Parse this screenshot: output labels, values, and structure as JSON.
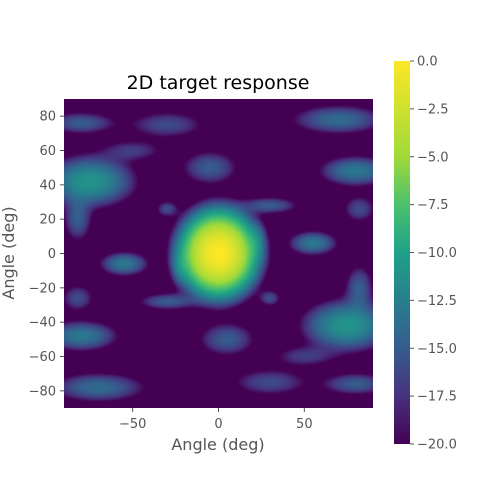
{
  "chart_data": {
    "type": "heatmap",
    "title": "2D target response",
    "xlabel": "Angle (deg)",
    "ylabel": "Angle (deg)",
    "xlim": [
      -90,
      90
    ],
    "ylim": [
      -90,
      90
    ],
    "x_ticks": [
      "−50",
      "0",
      "50"
    ],
    "x_tick_values": [
      -50,
      0,
      50
    ],
    "y_ticks": [
      "80",
      "60",
      "40",
      "20",
      "0",
      "−20",
      "−40",
      "−60",
      "−80"
    ],
    "y_tick_values": [
      80,
      60,
      40,
      20,
      0,
      -20,
      -40,
      -60,
      -80
    ],
    "colorbar": {
      "range": [
        -20,
        0
      ],
      "ticks": [
        "0.0",
        "−2.5",
        "−5.0",
        "−7.5",
        "−10.0",
        "−12.5",
        "−15.0",
        "−17.5",
        "−20.0"
      ],
      "tick_values": [
        0,
        -2.5,
        -5,
        -7.5,
        -10,
        -12.5,
        -15,
        -17.5,
        -20
      ],
      "colormap": "viridis"
    },
    "grid": false,
    "peak": {
      "x": 0,
      "y": 0,
      "value": 0
    },
    "lobes": [
      {
        "x": 0,
        "y": 0,
        "sx": 10,
        "sy": 11,
        "value": 0
      },
      {
        "x": -55,
        "y": -6,
        "sx": 8,
        "sy": 4,
        "value": -13
      },
      {
        "x": 55,
        "y": 6,
        "sx": 8,
        "sy": 4,
        "value": -13
      },
      {
        "x": -22,
        "y": -7,
        "sx": 3,
        "sy": 6,
        "value": -15
      },
      {
        "x": 22,
        "y": 7,
        "sx": 3,
        "sy": 6,
        "value": -15
      },
      {
        "x": -30,
        "y": 26,
        "sx": 4,
        "sy": 3,
        "value": -16
      },
      {
        "x": 30,
        "y": -26,
        "sx": 4,
        "sy": 3,
        "value": -16
      },
      {
        "x": -5,
        "y": 50,
        "sx": 10,
        "sy": 6,
        "value": -15
      },
      {
        "x": 5,
        "y": -50,
        "sx": 10,
        "sy": 6,
        "value": -15
      },
      {
        "x": -75,
        "y": 42,
        "sx": 14,
        "sy": 8,
        "value": -11
      },
      {
        "x": 75,
        "y": -42,
        "sx": 14,
        "sy": 8,
        "value": -11
      },
      {
        "x": 80,
        "y": 48,
        "sx": 12,
        "sy": 5,
        "value": -13
      },
      {
        "x": -80,
        "y": -48,
        "sx": 12,
        "sy": 5,
        "value": -13
      },
      {
        "x": 70,
        "y": 78,
        "sx": 16,
        "sy": 5,
        "value": -14
      },
      {
        "x": -70,
        "y": -78,
        "sx": 16,
        "sy": 5,
        "value": -14
      },
      {
        "x": -80,
        "y": 76,
        "sx": 12,
        "sy": 4,
        "value": -15
      },
      {
        "x": 80,
        "y": -76,
        "sx": 12,
        "sy": 4,
        "value": -15
      },
      {
        "x": -30,
        "y": -28,
        "sx": 10,
        "sy": 3,
        "value": -15
      },
      {
        "x": 30,
        "y": 28,
        "sx": 10,
        "sy": 3,
        "value": -15
      },
      {
        "x": 82,
        "y": 26,
        "sx": 6,
        "sy": 5,
        "value": -16
      },
      {
        "x": -82,
        "y": -26,
        "sx": 6,
        "sy": 5,
        "value": -16
      },
      {
        "x": -82,
        "y": 20,
        "sx": 5,
        "sy": 8,
        "value": -15
      },
      {
        "x": 82,
        "y": -20,
        "sx": 5,
        "sy": 8,
        "value": -15
      },
      {
        "x": -30,
        "y": 75,
        "sx": 14,
        "sy": 5,
        "value": -16
      },
      {
        "x": 30,
        "y": -75,
        "sx": 14,
        "sy": 5,
        "value": -16
      },
      {
        "x": -50,
        "y": 60,
        "sx": 12,
        "sy": 4,
        "value": -17
      },
      {
        "x": 50,
        "y": -60,
        "sx": 12,
        "sy": 4,
        "value": -17
      }
    ]
  }
}
